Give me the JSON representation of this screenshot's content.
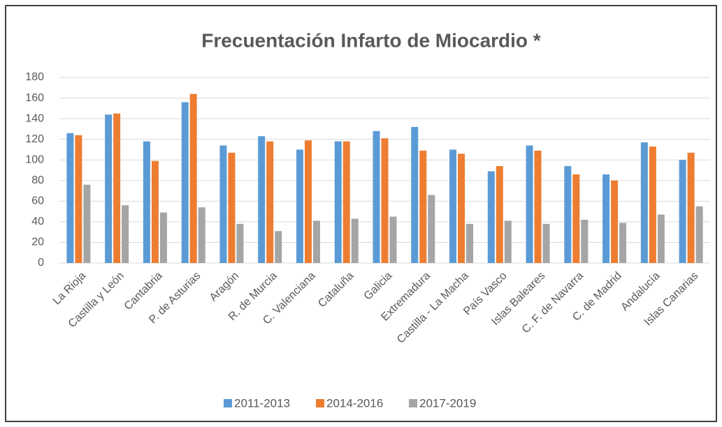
{
  "chart_data": {
    "type": "bar",
    "title": "Frecuentación Infarto de Miocardio *",
    "categories": [
      "La Rioja",
      "Castilla y León",
      "Cantabria",
      "P. de Asturias",
      "Aragón",
      "R. de Murcia",
      "C. Valenciana",
      "Cataluña",
      "Galicia",
      "Extremadura",
      "Castilla - La Macha",
      "País Vasco",
      "Islas Baleares",
      "C. F. de Navarra",
      "C. de Madrid",
      "Andalucía",
      "Islas Canarias"
    ],
    "series": [
      {
        "name": "2011-2013",
        "color": "#5b9bd5",
        "values": [
          126,
          144,
          118,
          156,
          114,
          123,
          110,
          118,
          128,
          132,
          110,
          89,
          114,
          94,
          86,
          117,
          100
        ]
      },
      {
        "name": "2014-2016",
        "color": "#ed7d31",
        "values": [
          124,
          145,
          99,
          164,
          107,
          118,
          119,
          118,
          121,
          109,
          106,
          94,
          109,
          86,
          80,
          113,
          107
        ]
      },
      {
        "name": "2017-2019",
        "color": "#a5a5a5",
        "values": [
          76,
          56,
          49,
          54,
          38,
          31,
          41,
          43,
          45,
          66,
          38,
          41,
          38,
          42,
          39,
          47,
          55
        ]
      }
    ],
    "ylim": [
      0,
      180
    ],
    "yticks": [
      0,
      20,
      40,
      60,
      80,
      100,
      120,
      140,
      160,
      180
    ],
    "grid": true,
    "legend": "bottom"
  }
}
